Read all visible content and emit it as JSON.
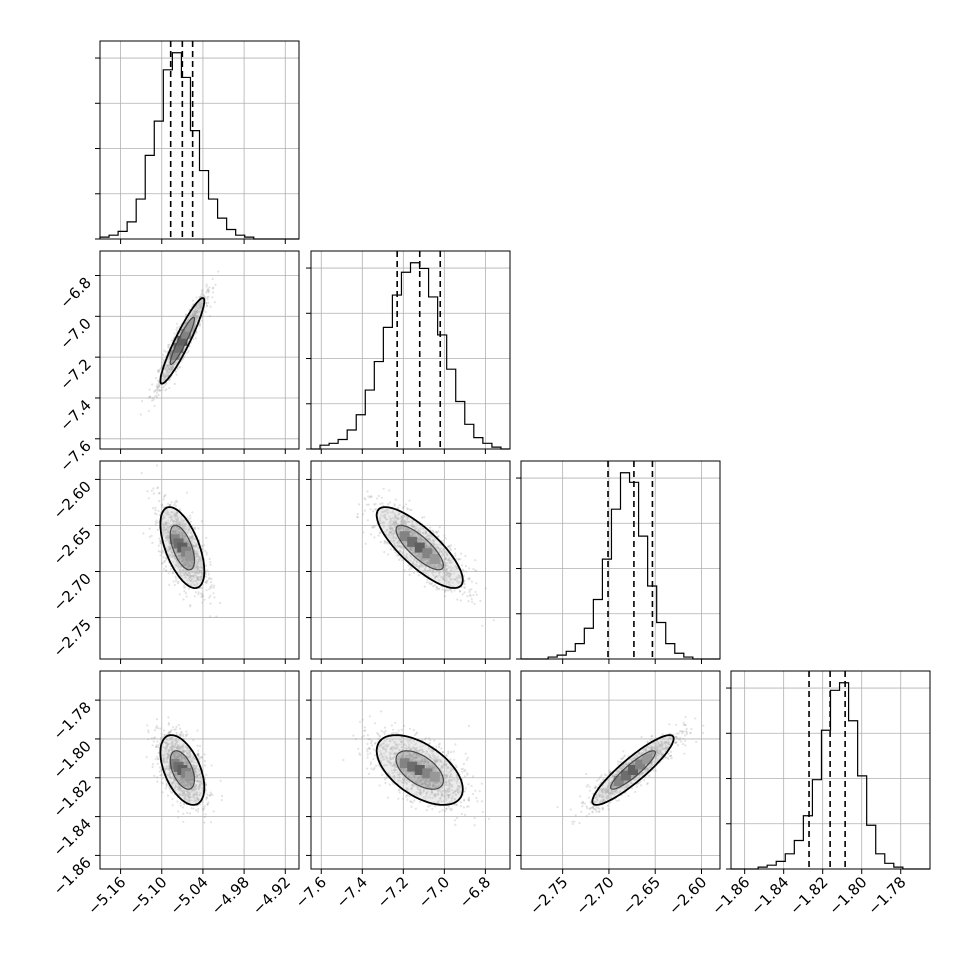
{
  "chart_data": {
    "type": "corner",
    "grid": true,
    "scatter_color": "#999999",
    "contour_color": "#000000",
    "params": [
      {
        "range": [
          -5.19,
          -4.9
        ],
        "ticks": [
          -5.16,
          -5.1,
          -5.04,
          -4.98,
          -4.92
        ],
        "tick_labels": [
          "−5.16",
          "−5.10",
          "−5.04",
          "−4.98",
          "−4.92"
        ],
        "quantiles": [
          -5.087,
          -5.07,
          -5.055
        ],
        "center": -5.07,
        "sigma": 0.016,
        "hist": [
          1,
          2,
          4,
          9,
          21,
          44,
          62,
          89,
          98,
          85,
          57,
          36,
          21,
          11,
          5,
          2,
          1,
          0,
          0,
          0,
          0,
          0
        ]
      },
      {
        "range": [
          -7.65,
          -6.68
        ],
        "ticks": [
          -7.6,
          -7.4,
          -7.2,
          -7.0,
          -6.8
        ],
        "tick_labels": [
          "−7.6",
          "−7.4",
          "−7.2",
          "−7.0",
          "−6.8"
        ],
        "quantiles": [
          -7.23,
          -7.12,
          -7.02
        ],
        "center": -7.12,
        "sigma": 0.105,
        "hist": [
          0,
          2,
          3,
          5,
          10,
          18,
          31,
          46,
          64,
          81,
          93,
          98,
          95,
          80,
          60,
          42,
          25,
          13,
          6,
          3,
          1,
          0
        ]
      },
      {
        "range": [
          -2.795,
          -2.58
        ],
        "ticks": [
          -2.75,
          -2.7,
          -2.65,
          -2.6
        ],
        "tick_labels": [
          "−2.75",
          "−2.70",
          "−2.65",
          "−2.60"
        ],
        "quantiles": [
          -2.701,
          -2.673,
          -2.653
        ],
        "center": -2.674,
        "sigma": 0.022,
        "hist": [
          0,
          0,
          0,
          1,
          2,
          4,
          8,
          16,
          31,
          52,
          78,
          97,
          92,
          64,
          38,
          19,
          8,
          3,
          1,
          0,
          0,
          0
        ]
      },
      {
        "range": [
          -1.867,
          -1.765
        ],
        "ticks": [
          -1.86,
          -1.84,
          -1.82,
          -1.8,
          -1.78
        ],
        "tick_labels": [
          "−1.86",
          "−1.84",
          "−1.82",
          "−1.80",
          "−1.78"
        ],
        "quantiles": [
          -1.827,
          -1.8162,
          -1.8085
        ],
        "center": -1.816,
        "sigma": 0.009,
        "hist": [
          0,
          0,
          0,
          1,
          2,
          4,
          8,
          15,
          28,
          47,
          73,
          94,
          98,
          78,
          49,
          23,
          8,
          3,
          1,
          0,
          0,
          0
        ]
      }
    ],
    "correlations": [
      [
        1.0,
        0.93,
        -0.58,
        -0.5
      ],
      [
        0.93,
        1.0,
        -0.8,
        -0.55
      ],
      [
        -0.58,
        -0.8,
        1.0,
        0.9
      ],
      [
        -0.5,
        -0.55,
        0.9,
        1.0
      ]
    ]
  }
}
